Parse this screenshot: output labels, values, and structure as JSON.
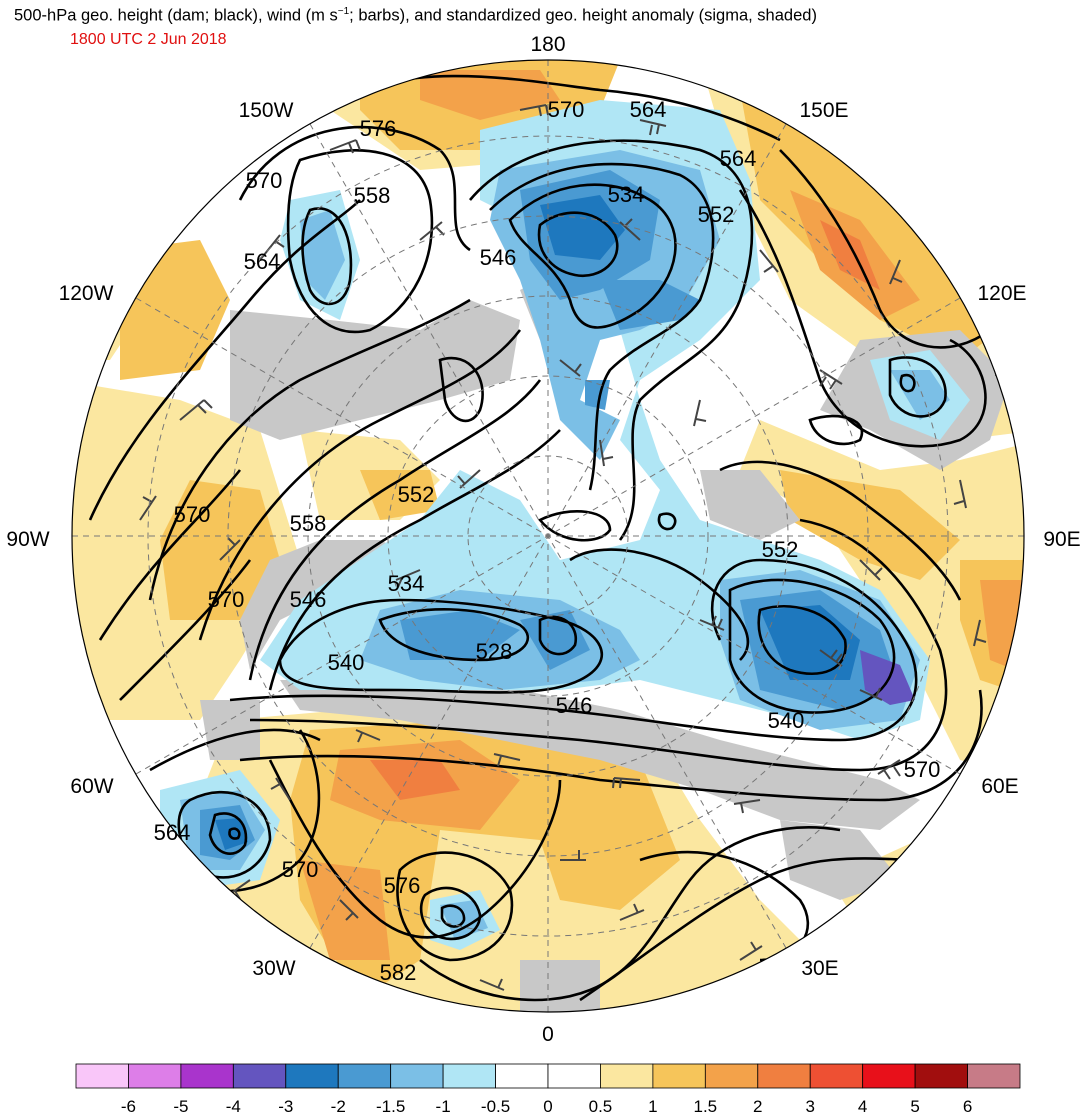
{
  "title_main": "500-hPa geo. height (dam; black), wind (m s",
  "title_sup": "−1",
  "title_rest": "; barbs), and standardized geo. height anomaly (sigma, shaded)",
  "valid_time": "1800 UTC 2 Jun 2018",
  "longitude_labels": {
    "lon_180": "180",
    "lon_150e": "150E",
    "lon_120e": "120E",
    "lon_90e": "90E",
    "lon_60e": "60E",
    "lon_30e": "30E",
    "lon_0": "0",
    "lon_30w": "30W",
    "lon_60w": "60W",
    "lon_90w": "90W",
    "lon_120w": "120W",
    "lon_150w": "150W"
  },
  "contour_labels": [
    "570",
    "564",
    "576",
    "564",
    "552",
    "534",
    "558",
    "570",
    "546",
    "564",
    "552",
    "570",
    "558",
    "546",
    "534",
    "540",
    "528",
    "546",
    "570",
    "552",
    "540",
    "570",
    "564",
    "570",
    "576",
    "582"
  ],
  "colorbar": {
    "colors": [
      "#f9c6f9",
      "#dd7ee8",
      "#a934cc",
      "#6455bf",
      "#1e78be",
      "#4a9ad2",
      "#7bbfe6",
      "#b0e6f5",
      "#ffffff",
      "#ffffff",
      "#fbe7a0",
      "#f6c55a",
      "#f3a24a",
      "#f07f40",
      "#ee5033",
      "#e8101a",
      "#a10e0e",
      "#c77b87"
    ],
    "ticks": [
      "-6",
      "-5",
      "-4",
      "-3",
      "-2",
      "-1.5",
      "-1",
      "-0.5",
      "0",
      "0.5",
      "1",
      "1.5",
      "2",
      "3",
      "4",
      "5",
      "6"
    ]
  },
  "map_colors": {
    "ocean": "#ffffff",
    "land_gray": "#c8c8c8",
    "anomaly_pos_weak": "#fbe7a0",
    "anomaly_pos": "#f6c55a",
    "anomaly_pos_strong": "#f3a24a",
    "anomaly_pos_stronger": "#f07f40",
    "anomaly_neg_weak": "#b0e6f5",
    "anomaly_neg": "#7bbfe6",
    "anomaly_neg_strong": "#4a9ad2",
    "anomaly_neg_stronger": "#1e78be",
    "anomaly_neg_max": "#6455bf"
  }
}
